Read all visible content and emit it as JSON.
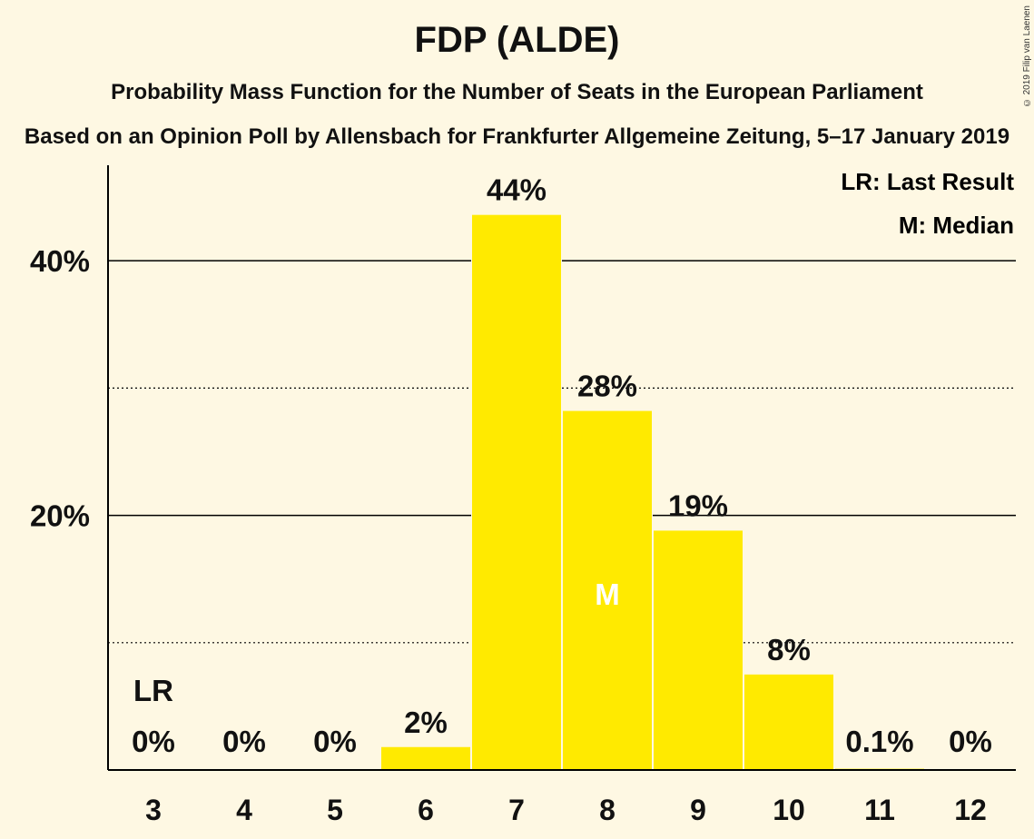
{
  "copyright": "© 2019 Filip van Laenen",
  "chart_data": {
    "type": "bar",
    "title": "FDP (ALDE)",
    "subtitle": "Probability Mass Function for the Number of Seats in the European Parliament",
    "subtitle2": "Based on an Opinion Poll by Allensbach for Frankfurter Allgemeine Zeitung, 5–17 January 2019",
    "categories": [
      "3",
      "4",
      "5",
      "6",
      "7",
      "8",
      "9",
      "10",
      "11",
      "12"
    ],
    "values": [
      0,
      0,
      0,
      1.8,
      43.6,
      28.2,
      18.8,
      7.5,
      0.1,
      0
    ],
    "value_labels": [
      "0%",
      "0%",
      "0%",
      "2%",
      "44%",
      "28%",
      "19%",
      "8%",
      "0.1%",
      "0%"
    ],
    "ylim": [
      0,
      47.5
    ],
    "y_major_ticks": [
      20,
      40
    ],
    "y_major_tick_labels": [
      "20%",
      "40%"
    ],
    "y_minor_ticks": [
      10,
      30
    ],
    "last_result_category": "3",
    "last_result_marker": "LR",
    "median_category": "8",
    "median_marker": "M",
    "legend": [
      "LR: Last Result",
      "M: Median"
    ],
    "bar_color": "#ffea00",
    "background_color": "#fef8e3"
  }
}
